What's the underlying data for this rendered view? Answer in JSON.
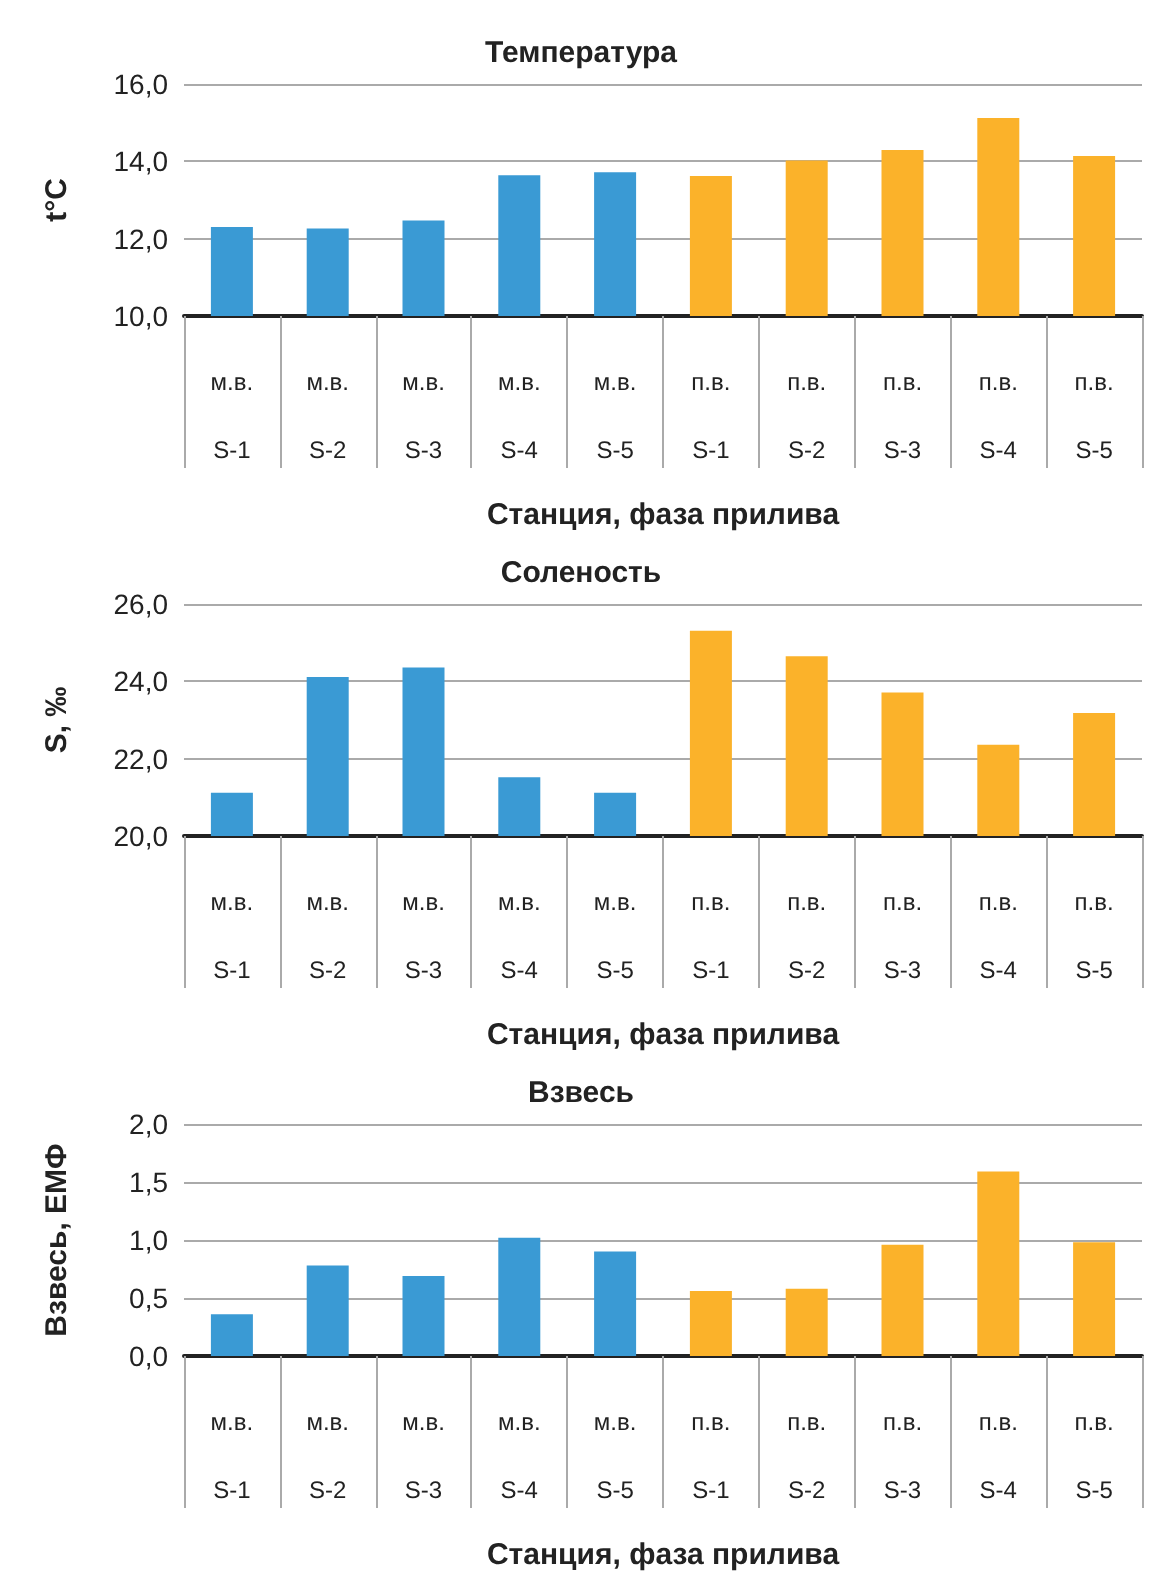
{
  "chart_data": [
    {
      "type": "bar",
      "title": "Температура",
      "xlabel": "Станция, фаза прилива",
      "ylabel": "t°C",
      "categories": [
        "м.в.\nS-1",
        "м.в.\nS-2",
        "м.в.\nS-3",
        "м.в.\nS-4",
        "м.в.\nS-5",
        "п.в.\nS-1",
        "п.в.\nS-2",
        "п.в.\nS-3",
        "п.в.\nS-4",
        "п.в.\nS-5"
      ],
      "values": [
        12.3,
        12.26,
        12.47,
        13.64,
        13.72,
        13.62,
        14.02,
        14.29,
        15.12,
        14.14
      ],
      "colors": [
        "#3a9ad4",
        "#3a9ad4",
        "#3a9ad4",
        "#3a9ad4",
        "#3a9ad4",
        "#fbb22a",
        "#fbb22a",
        "#fbb22a",
        "#fbb22a",
        "#fbb22a"
      ],
      "ylim": [
        10,
        16
      ],
      "yticks": [
        {
          "value": 10,
          "label": "10,0"
        },
        {
          "value": 12,
          "label": "12,0"
        },
        {
          "value": 14,
          "label": "14,0"
        },
        {
          "value": 16,
          "label": "16,0"
        }
      ],
      "grid": "y"
    },
    {
      "type": "bar",
      "title": "Соленость",
      "xlabel": "Станция, фаза прилива",
      "ylabel": "S, ‰",
      "categories": [
        "м.в.\nS-1",
        "м.в.\nS-2",
        "м.в.\nS-3",
        "м.в.\nS-4",
        "м.в.\nS-5",
        "п.в.\nS-1",
        "п.в.\nS-2",
        "п.в.\nS-3",
        "п.в.\nS-4",
        "п.в.\nS-5"
      ],
      "values": [
        21.12,
        24.11,
        24.36,
        21.52,
        21.12,
        25.31,
        24.65,
        23.71,
        22.36,
        23.18
      ],
      "colors": [
        "#3a9ad4",
        "#3a9ad4",
        "#3a9ad4",
        "#3a9ad4",
        "#3a9ad4",
        "#fbb22a",
        "#fbb22a",
        "#fbb22a",
        "#fbb22a",
        "#fbb22a"
      ],
      "ylim": [
        20,
        26
      ],
      "yticks": [
        {
          "value": 20,
          "label": "20,0"
        },
        {
          "value": 22,
          "label": "22,0"
        },
        {
          "value": 24,
          "label": "24,0"
        },
        {
          "value": 26,
          "label": "26,0"
        }
      ],
      "grid": "y"
    },
    {
      "type": "bar",
      "title": "Взвесь",
      "xlabel": "Станция, фаза прилива",
      "ylabel": "Взвесь, ЕМФ",
      "categories": [
        "м.в.\nS-1",
        "м.в.\nS-2",
        "м.в.\nS-3",
        "м.в.\nS-4",
        "м.в.\nS-5",
        "п.в.\nS-1",
        "п.в.\nS-2",
        "п.в.\nS-3",
        "п.в.\nS-4",
        "п.в.\nS-5"
      ],
      "values": [
        0.36,
        0.78,
        0.69,
        1.02,
        0.9,
        0.56,
        0.58,
        0.96,
        1.59,
        0.98
      ],
      "colors": [
        "#3a9ad4",
        "#3a9ad4",
        "#3a9ad4",
        "#3a9ad4",
        "#3a9ad4",
        "#fbb22a",
        "#fbb22a",
        "#fbb22a",
        "#fbb22a",
        "#fbb22a"
      ],
      "ylim": [
        0,
        2
      ],
      "yticks": [
        {
          "value": 0,
          "label": "0,0"
        },
        {
          "value": 0.5,
          "label": "0,5"
        },
        {
          "value": 1,
          "label": "1,0"
        },
        {
          "value": 1.5,
          "label": "1,5"
        },
        {
          "value": 2,
          "label": "2,0"
        }
      ],
      "grid": "y"
    }
  ]
}
